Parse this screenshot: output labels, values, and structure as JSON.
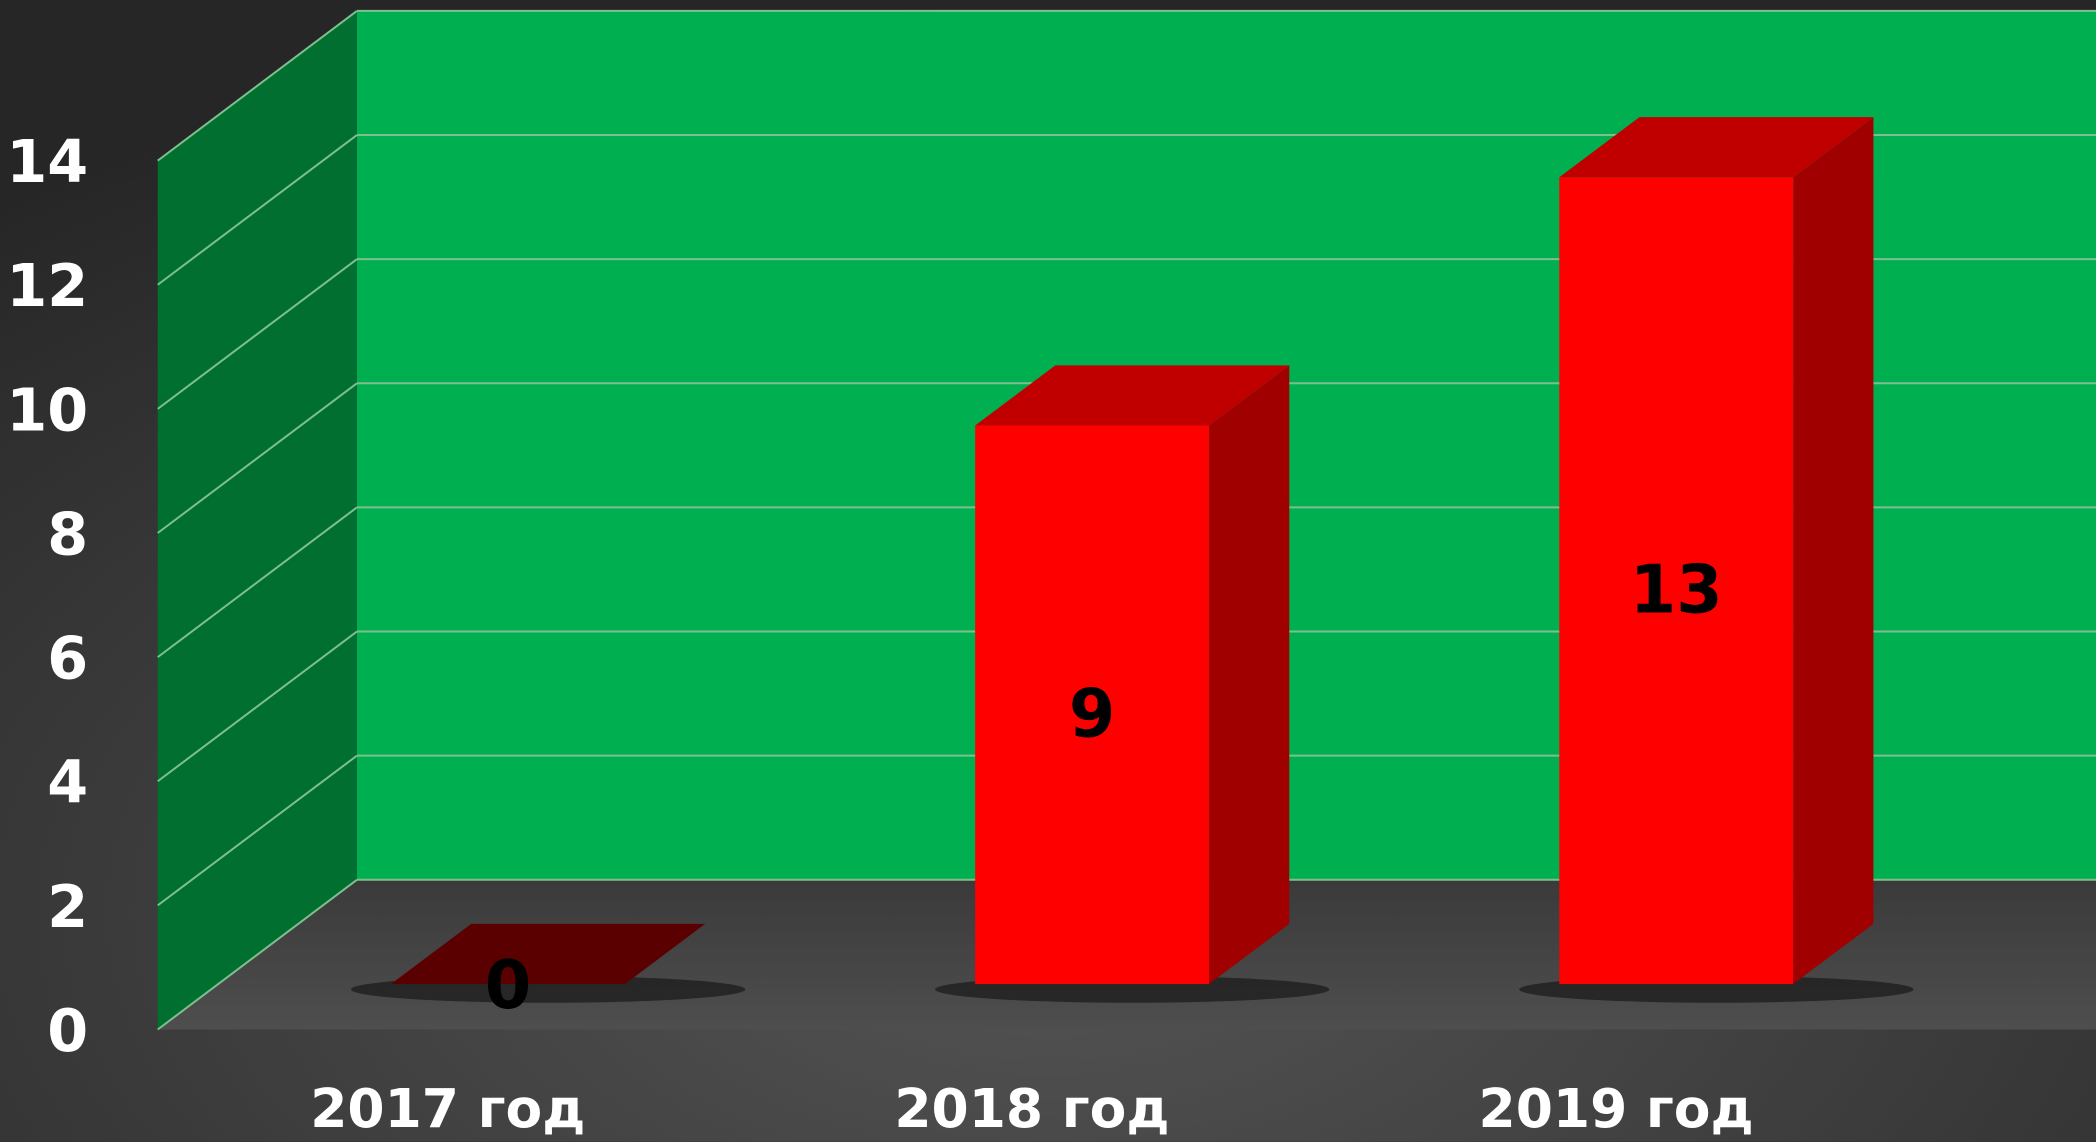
{
  "chart_data": {
    "type": "bar3d",
    "categories": [
      "2017 год",
      "2018 год",
      "2019 год"
    ],
    "values": [
      0,
      9,
      13
    ],
    "color": "#ff0000",
    "ylim": [
      0,
      14
    ],
    "yticks": [
      0,
      2,
      4,
      6,
      8,
      10,
      12,
      14
    ],
    "grid": true
  }
}
